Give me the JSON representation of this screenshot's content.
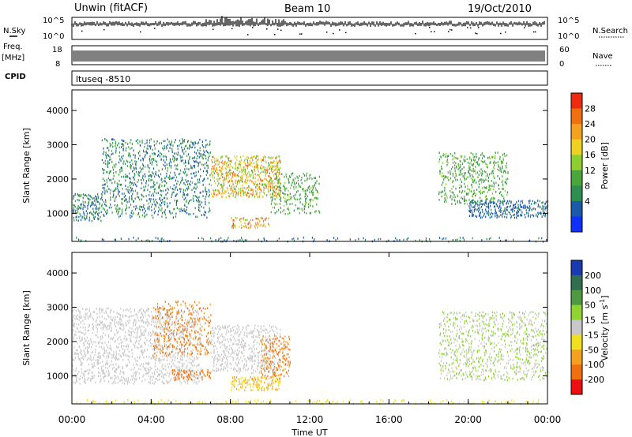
{
  "header": {
    "title": "Unwin (fitACF)",
    "beam": "Beam 10",
    "date": "19/Oct/2010"
  },
  "strip_labels": {
    "nsky": "N.Sky",
    "nsearch": "N.Search",
    "freq": "Freq.",
    "freq_unit": "[MHz]",
    "nave": "Nave",
    "cpid": "CPID",
    "cpid_value": "ltuseq -8510",
    "nsky_ticks": [
      "10^5",
      "10^0"
    ],
    "nsearch_ticks": [
      "10^5",
      "10^0"
    ],
    "freq_ticks": [
      "18",
      "8"
    ],
    "nave_ticks": [
      "60",
      "0"
    ]
  },
  "colors": {
    "power": [
      "#1030ff",
      "#1a5aa8",
      "#2f8f50",
      "#4aa53a",
      "#8ccf2e",
      "#f0d020",
      "#f4a020",
      "#f07010",
      "#ee2a10"
    ],
    "velocity": [
      "#1a3ab0",
      "#2f6f50",
      "#4e9a40",
      "#8fd430",
      "#c8c8c8",
      "#f0e020",
      "#f4a020",
      "#f07010",
      "#ee1010"
    ]
  },
  "chart_data": [
    {
      "type": "heatmap",
      "name": "power",
      "ylabel": "Slant Range [km]",
      "yticks": [
        1000,
        2000,
        3000,
        4000
      ],
      "ylim": [
        180,
        4600
      ],
      "colorbar_label": "Power [dB]",
      "colorbar_ticks": [
        4,
        8,
        12,
        16,
        20,
        24,
        28
      ],
      "colorbar_range": [
        0,
        32
      ],
      "regions": [
        {
          "t": [
            0.0,
            1.5
          ],
          "r": [
            800,
            1600
          ],
          "p": [
            4,
            12
          ],
          "d": 0.55
        },
        {
          "t": [
            1.5,
            7.0
          ],
          "r": [
            900,
            3200
          ],
          "p": [
            4,
            12
          ],
          "d": 0.3
        },
        {
          "t": [
            7.0,
            10.5
          ],
          "r": [
            1500,
            2700
          ],
          "p": [
            12,
            28
          ],
          "d": 0.55
        },
        {
          "t": [
            8.0,
            10.0
          ],
          "r": [
            600,
            900
          ],
          "p": [
            16,
            30
          ],
          "d": 0.5
        },
        {
          "t": [
            10.0,
            12.5
          ],
          "r": [
            1000,
            2200
          ],
          "p": [
            8,
            16
          ],
          "d": 0.3
        },
        {
          "t": [
            0.0,
            24.0
          ],
          "r": [
            200,
            320
          ],
          "p": [
            4,
            10
          ],
          "d": 0.2
        },
        {
          "t": [
            18.5,
            22.0
          ],
          "r": [
            1300,
            2800
          ],
          "p": [
            8,
            16
          ],
          "d": 0.35
        },
        {
          "t": [
            20.0,
            24.0
          ],
          "r": [
            900,
            1400
          ],
          "p": [
            4,
            8
          ],
          "d": 0.55
        }
      ]
    },
    {
      "type": "heatmap",
      "name": "velocity",
      "ylabel": "Slant Range [km]",
      "yticks": [
        1000,
        2000,
        3000,
        4000
      ],
      "ylim": [
        180,
        4600
      ],
      "colorbar_label": "Velocity [m s^-1]",
      "colorbar_ticks": [
        200,
        100,
        50,
        15,
        -15,
        -50,
        -100,
        -200
      ],
      "xlabel": "Time UT",
      "xticks": [
        "00:00",
        "04:00",
        "08:00",
        "12:00",
        "16:00",
        "20:00",
        "00:00"
      ],
      "xlim_hours": [
        0,
        24
      ],
      "regions": [
        {
          "t": [
            0.0,
            6.5
          ],
          "r": [
            800,
            3000
          ],
          "v": [
            -15,
            15
          ],
          "d": 0.35
        },
        {
          "t": [
            4.0,
            7.0
          ],
          "r": [
            1600,
            3200
          ],
          "v": [
            -200,
            -50
          ],
          "d": 0.25
        },
        {
          "t": [
            5.0,
            7.0
          ],
          "r": [
            900,
            1200
          ],
          "v": [
            -200,
            -100
          ],
          "d": 0.4
        },
        {
          "t": [
            7.0,
            10.5
          ],
          "r": [
            1100,
            2500
          ],
          "v": [
            -15,
            15
          ],
          "d": 0.35
        },
        {
          "t": [
            8.0,
            10.5
          ],
          "r": [
            600,
            1000
          ],
          "v": [
            -100,
            -15
          ],
          "d": 0.5
        },
        {
          "t": [
            9.5,
            11.0
          ],
          "r": [
            1000,
            2200
          ],
          "v": [
            -200,
            -50
          ],
          "d": 0.35
        },
        {
          "t": [
            0.0,
            24.0
          ],
          "r": [
            200,
            320
          ],
          "v": [
            -50,
            -15
          ],
          "d": 0.2
        },
        {
          "t": [
            18.5,
            24.0
          ],
          "r": [
            900,
            2900
          ],
          "v": [
            -15,
            50
          ],
          "d": 0.3
        }
      ]
    }
  ]
}
